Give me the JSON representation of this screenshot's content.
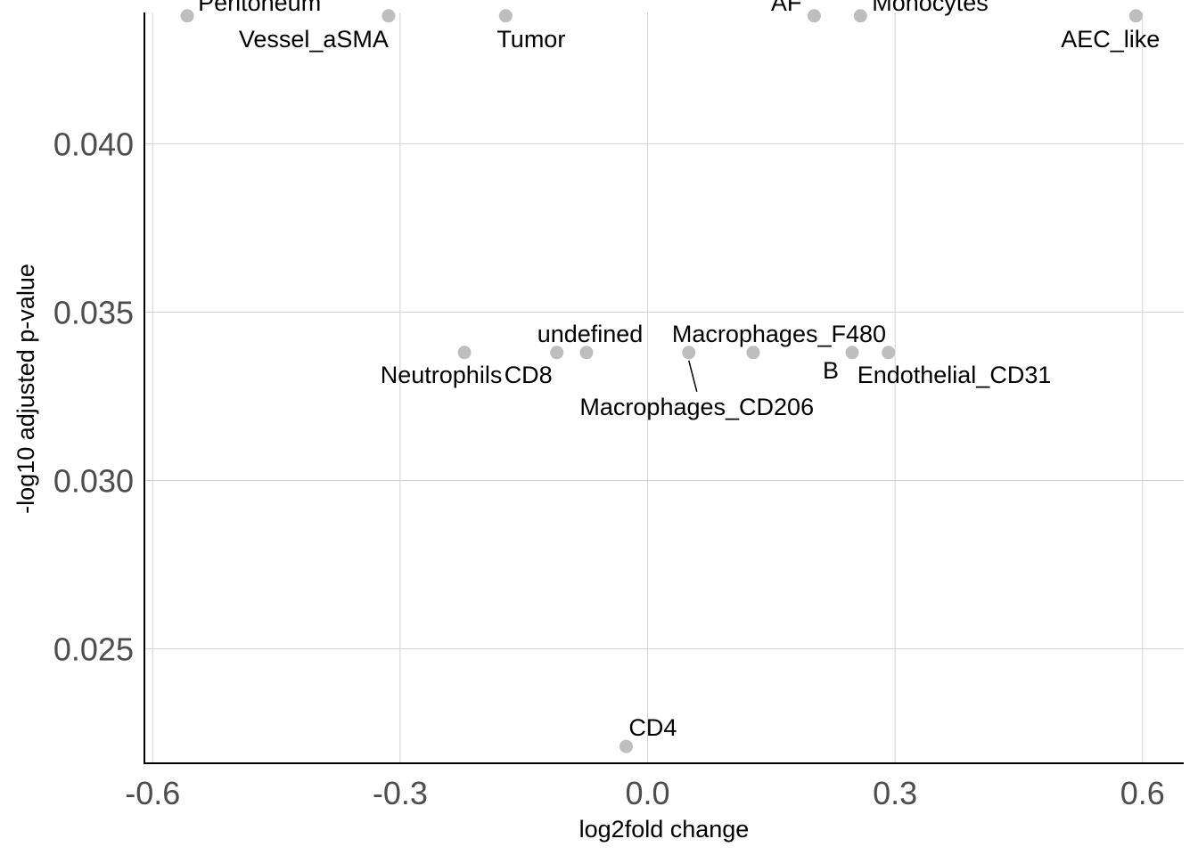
{
  "chart_data": {
    "type": "scatter",
    "title": "",
    "xlabel": "log2fold change",
    "ylabel": "-log10 adjusted p-value",
    "xlim": [
      -0.61,
      0.65
    ],
    "ylim": [
      0.0216,
      0.0439
    ],
    "x_ticks": [
      -0.6,
      -0.3,
      0.0,
      0.3,
      0.6
    ],
    "x_tick_labels": [
      "-0.6",
      "-0.3",
      "0.0",
      "0.3",
      "0.6"
    ],
    "y_ticks": [
      0.025,
      0.03,
      0.035,
      0.04
    ],
    "y_tick_labels": [
      "0.025",
      "0.030",
      "0.035",
      "0.040"
    ],
    "grid": true,
    "point_color": "#bebebe",
    "points": [
      {
        "label": "Peritoneum",
        "x": -0.558,
        "y": 0.0438
      },
      {
        "label": "Vessel_aSMA",
        "x": -0.314,
        "y": 0.0438
      },
      {
        "label": "Tumor",
        "x": -0.172,
        "y": 0.0438
      },
      {
        "label": "AF",
        "x": 0.202,
        "y": 0.0438
      },
      {
        "label": "Monocytes",
        "x": 0.258,
        "y": 0.0438
      },
      {
        "label": "AEC_like",
        "x": 0.592,
        "y": 0.0438
      },
      {
        "label": "Neutrophils",
        "x": -0.222,
        "y": 0.0338
      },
      {
        "label": "CD8",
        "x": -0.11,
        "y": 0.0338
      },
      {
        "label": "undefined",
        "x": -0.074,
        "y": 0.0338
      },
      {
        "label": "Macrophages_CD206",
        "x": 0.05,
        "y": 0.0338
      },
      {
        "label": "Macrophages_F480",
        "x": 0.128,
        "y": 0.0338
      },
      {
        "label": "B",
        "x": 0.248,
        "y": 0.0338
      },
      {
        "label": "Endothelial_CD31",
        "x": 0.292,
        "y": 0.0338
      },
      {
        "label": "CD4",
        "x": -0.026,
        "y": 0.0221
      }
    ]
  }
}
